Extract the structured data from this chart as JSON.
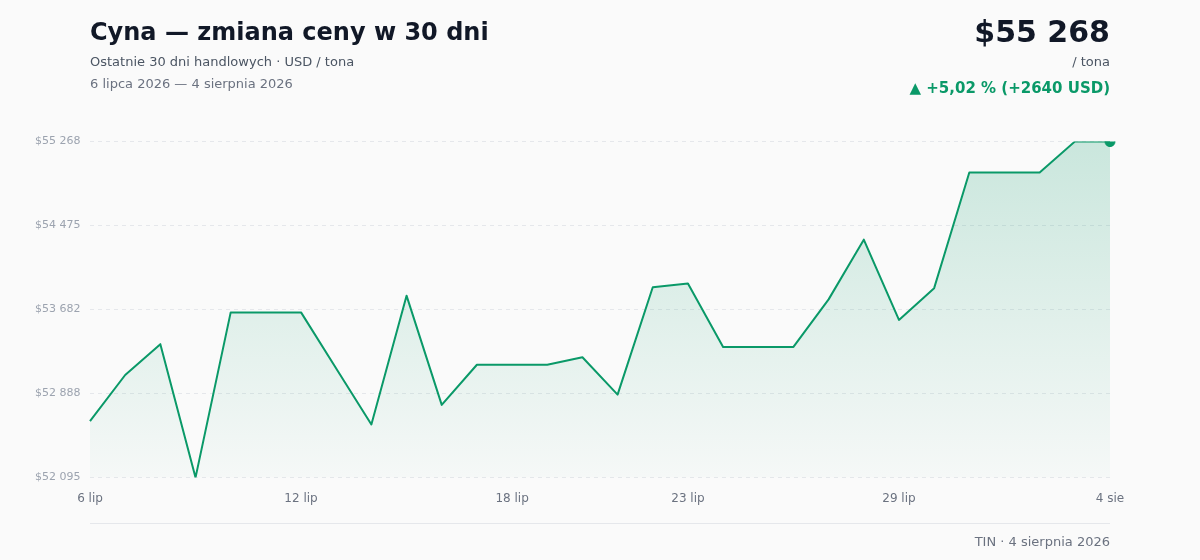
{
  "chart_data": {
    "type": "area",
    "title": "Cyna — zmiana ceny w 30 dni",
    "subtitle": "Ostatnie 30 dni handlowych · USD / tona",
    "annotations": [
      "6 lipca 2026 — 4 sierpnia 2026",
      "$55 268",
      "/ tona",
      "▲ +5,02 % (+2640 USD)",
      "TIN · 4 sierpnia 2026"
    ],
    "categories": [
      "6 lip",
      null,
      null,
      null,
      null,
      null,
      "12 lip",
      null,
      null,
      null,
      null,
      null,
      "18 lip",
      null,
      null,
      null,
      null,
      "23 lip",
      null,
      null,
      null,
      null,
      null,
      "29 lip",
      null,
      null,
      null,
      null,
      null,
      "4 sie"
    ],
    "series": [
      {
        "type": "area",
        "color": "#0a9968",
        "marker": "none",
        "values": [
          52628,
          53064,
          53355,
          52095,
          53655,
          53655,
          53655,
          53126,
          52597,
          53813,
          52782,
          53161,
          53161,
          53161,
          53232,
          52879,
          53892,
          53928,
          53329,
          53329,
          53329,
          53778,
          54342,
          53584,
          53884,
          54976,
          54976,
          54976,
          55268,
          55268
        ]
      },
      {
        "type": "scatter",
        "color": "#0a9968",
        "marker": "circle",
        "x": [
          "4 sie"
        ],
        "values": [
          55268
        ]
      }
    ],
    "ylim": [
      52095,
      55268
    ],
    "yticks": [
      {
        "value": 52095,
        "label": "$52 095"
      },
      {
        "value": 52888,
        "label": "$52 888"
      },
      {
        "value": 53682,
        "label": "$53 682"
      },
      {
        "value": 54475,
        "label": "$54 475"
      },
      {
        "value": 55268,
        "label": "$55 268"
      }
    ],
    "grid": "y",
    "legend": false
  }
}
